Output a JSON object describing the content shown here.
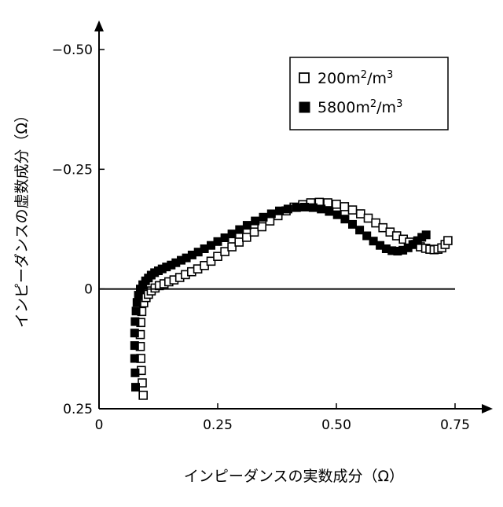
{
  "chart_data": {
    "type": "scatter",
    "title": "",
    "xlabel": "インピーダンスの実数成分（Ω）",
    "ylabel": "インピーダンスの虚数成分（Ω）",
    "xlim": [
      0,
      0.75
    ],
    "ylim": [
      0.25,
      -0.5
    ],
    "y_axis_inverted": true,
    "grid": false,
    "zero_line": true,
    "x_ticks": [
      {
        "value": 0,
        "label": "0"
      },
      {
        "value": 0.25,
        "label": "0.25"
      },
      {
        "value": 0.5,
        "label": "0.50"
      },
      {
        "value": 0.75,
        "label": "0.75"
      }
    ],
    "y_ticks": [
      {
        "value": -0.5,
        "label": "−0.50"
      },
      {
        "value": -0.25,
        "label": "−0.25"
      },
      {
        "value": 0,
        "label": "0"
      },
      {
        "value": 0.25,
        "label": "0.25"
      }
    ],
    "legend": {
      "placement": "top-right",
      "entries": [
        {
          "label_main": "200m",
          "sup1": "2",
          "mid": "/m",
          "sup2": "3",
          "marker": "open-square"
        },
        {
          "label_main": "5800m",
          "sup1": "2",
          "mid": "/m",
          "sup2": "3",
          "marker": "filled-square"
        }
      ]
    },
    "series": [
      {
        "marker": "open-square",
        "color": "#000000",
        "x": [
          0.093,
          0.091,
          0.089,
          0.088,
          0.087,
          0.087,
          0.088,
          0.09,
          0.094,
          0.099,
          0.104,
          0.11,
          0.118,
          0.127,
          0.137,
          0.147,
          0.158,
          0.17,
          0.182,
          0.195,
          0.208,
          0.222,
          0.236,
          0.25,
          0.265,
          0.28,
          0.295,
          0.311,
          0.327,
          0.343,
          0.36,
          0.377,
          0.394,
          0.411,
          0.429,
          0.446,
          0.464,
          0.482,
          0.5,
          0.517,
          0.534,
          0.551,
          0.567,
          0.583,
          0.598,
          0.613,
          0.627,
          0.641,
          0.654,
          0.666,
          0.677,
          0.688,
          0.697,
          0.706,
          0.714,
          0.722,
          0.729,
          0.735
        ],
        "y": [
          0.222,
          0.196,
          0.17,
          0.145,
          0.12,
          0.095,
          0.07,
          0.047,
          0.029,
          0.018,
          0.011,
          0.004,
          -0.002,
          -0.007,
          -0.011,
          -0.015,
          -0.019,
          -0.024,
          -0.03,
          -0.036,
          -0.042,
          -0.049,
          -0.058,
          -0.068,
          -0.078,
          -0.088,
          -0.098,
          -0.108,
          -0.119,
          -0.13,
          -0.142,
          -0.153,
          -0.163,
          -0.171,
          -0.176,
          -0.18,
          -0.181,
          -0.18,
          -0.177,
          -0.172,
          -0.165,
          -0.157,
          -0.148,
          -0.138,
          -0.128,
          -0.119,
          -0.111,
          -0.104,
          -0.098,
          -0.093,
          -0.088,
          -0.085,
          -0.083,
          -0.082,
          -0.083,
          -0.086,
          -0.093,
          -0.101
        ]
      },
      {
        "marker": "filled-square",
        "color": "#000000",
        "x": [
          0.077,
          0.076,
          0.075,
          0.075,
          0.075,
          0.076,
          0.078,
          0.08,
          0.083,
          0.087,
          0.092,
          0.098,
          0.104,
          0.11,
          0.117,
          0.125,
          0.133,
          0.142,
          0.152,
          0.162,
          0.173,
          0.184,
          0.196,
          0.209,
          0.222,
          0.236,
          0.25,
          0.265,
          0.28,
          0.296,
          0.312,
          0.329,
          0.346,
          0.363,
          0.38,
          0.398,
          0.416,
          0.433,
          0.451,
          0.468,
          0.485,
          0.502,
          0.518,
          0.534,
          0.549,
          0.564,
          0.578,
          0.592,
          0.605,
          0.617,
          0.629,
          0.64,
          0.651,
          0.661,
          0.671,
          0.68,
          0.689
        ],
        "y": [
          0.205,
          0.175,
          0.145,
          0.118,
          0.092,
          0.068,
          0.046,
          0.028,
          0.013,
          0.0,
          -0.009,
          -0.017,
          -0.023,
          -0.029,
          -0.034,
          -0.038,
          -0.042,
          -0.046,
          -0.05,
          -0.055,
          -0.06,
          -0.065,
          -0.071,
          -0.077,
          -0.084,
          -0.091,
          -0.099,
          -0.107,
          -0.115,
          -0.124,
          -0.133,
          -0.142,
          -0.15,
          -0.157,
          -0.163,
          -0.167,
          -0.17,
          -0.171,
          -0.17,
          -0.167,
          -0.162,
          -0.155,
          -0.146,
          -0.135,
          -0.123,
          -0.111,
          -0.1,
          -0.091,
          -0.084,
          -0.08,
          -0.079,
          -0.081,
          -0.086,
          -0.093,
          -0.101,
          -0.108,
          -0.113
        ]
      }
    ]
  }
}
